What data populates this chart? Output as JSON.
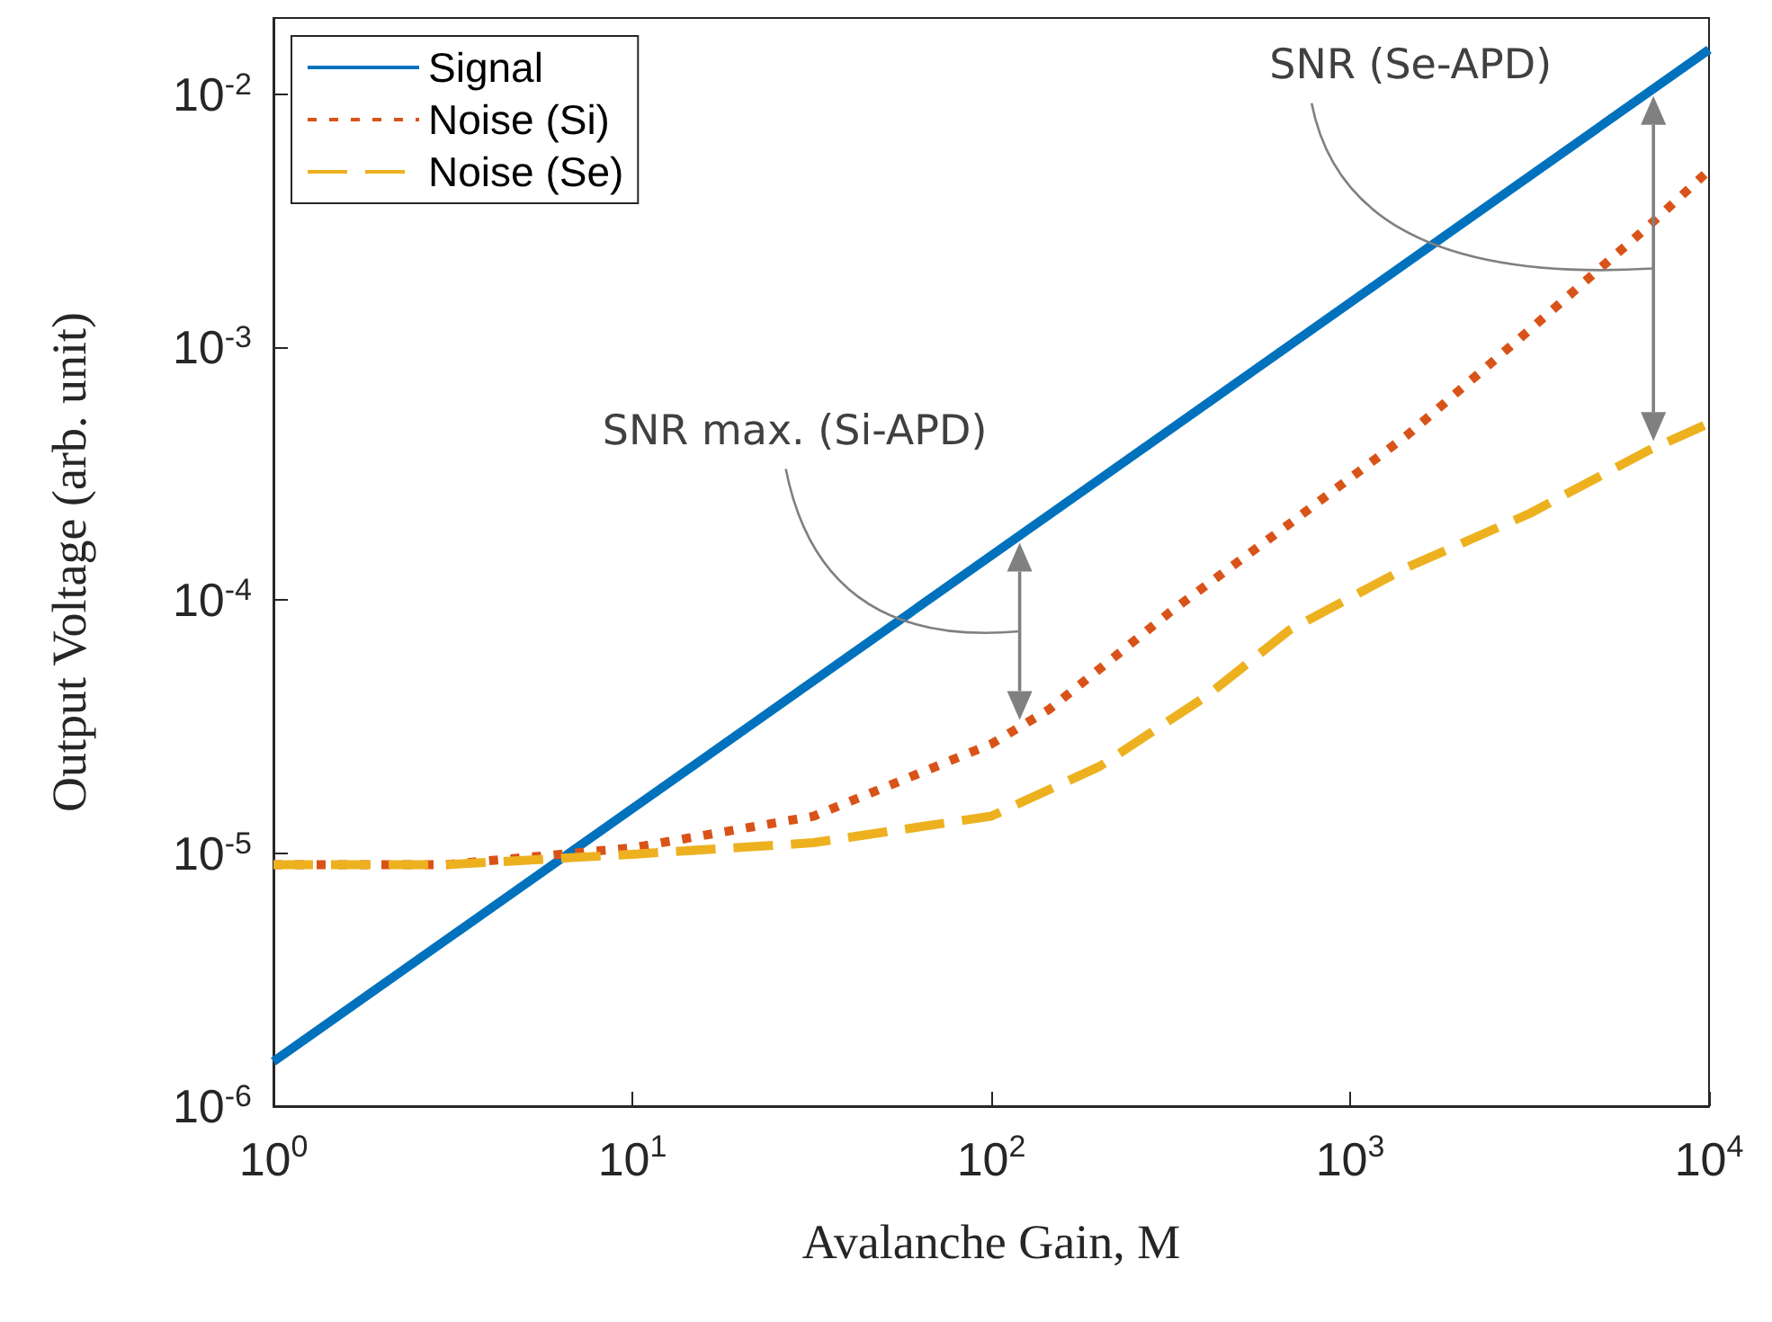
{
  "chart_data": {
    "type": "line",
    "xlabel": "Avalanche Gain, M",
    "ylabel": "Output Voltage (arb. unit)",
    "log": "xy",
    "xlim": [
      1,
      10000
    ],
    "ylim": [
      1e-06,
      0.02
    ],
    "xticks": [
      {
        "value": 1,
        "label": "10$^{0}$"
      },
      {
        "value": 10,
        "label": "10$^{1}$"
      },
      {
        "value": 100,
        "label": "10$^{2}$"
      },
      {
        "value": 1000,
        "label": "10$^{3}$"
      },
      {
        "value": 10000,
        "label": "10$^{4}$"
      }
    ],
    "yticks": [
      {
        "value": 1e-06,
        "label": "10$^{-6}$"
      },
      {
        "value": 1e-05,
        "label": "10$^{-5}$"
      },
      {
        "value": 0.0001,
        "label": "10$^{-4}$"
      },
      {
        "value": 0.001,
        "label": "10$^{-3}$"
      },
      {
        "value": 0.01,
        "label": "10$^{-2}$"
      }
    ],
    "grid": false,
    "legend": "top left",
    "marker": "none",
    "series": [
      {
        "name": "Signal",
        "color": "#0072bd",
        "line_style": "solid",
        "x": [
          1,
          10000
        ],
        "values": [
          1.5e-06,
          0.015
        ]
      },
      {
        "name": "Noise (Si)",
        "color": "#d95319",
        "line_style": "dotted",
        "x": [
          1,
          3,
          10,
          32,
          100,
          145,
          316,
          676,
          1445,
          3162,
          6761,
          10000
        ],
        "values": [
          9e-06,
          9e-06,
          1.05e-05,
          1.4e-05,
          2.7e-05,
          3.7e-05,
          9e-05,
          0.0002,
          0.00045,
          0.00117,
          0.003,
          0.005
        ]
      },
      {
        "name": "Noise (Se)",
        "color": "#edb120",
        "line_style": "dashed",
        "x": [
          1,
          3,
          10,
          32,
          100,
          200,
          400,
          676,
          1445,
          3162,
          6761,
          10000
        ],
        "values": [
          9e-06,
          9e-06,
          9.9e-06,
          1.1e-05,
          1.4e-05,
          2.2e-05,
          4.2e-05,
          7.6e-05,
          0.000135,
          0.00022,
          0.00039,
          0.0005
        ]
      }
    ],
    "annotations": [
      {
        "text": "SNR max. (Si-APD)",
        "x": 120,
        "y": 0.00018
      },
      {
        "text": "SNR (Se-APD)",
        "x": 7000,
        "y": 0.0105
      }
    ]
  }
}
